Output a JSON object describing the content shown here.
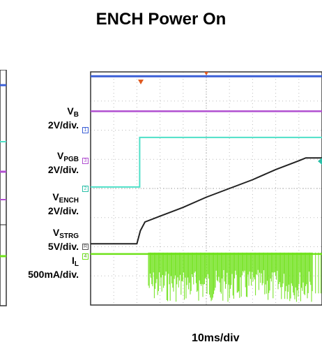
{
  "title": "ENCH Power On",
  "timebase": "10ms/div",
  "colors": {
    "vb": "#3b5fd6",
    "vpgb": "#b04fd0",
    "vench": "#4fe0c8",
    "vstrg": "#222222",
    "il": "#6fe21a",
    "trigger": "#e05a20"
  },
  "labels": [
    {
      "key": "vb",
      "name_main": "V",
      "name_sub": "B",
      "scale": "2V/div.",
      "marker": "1"
    },
    {
      "key": "vpgb",
      "name_main": "V",
      "name_sub": "PGB",
      "scale": "2V/div.",
      "marker": "3"
    },
    {
      "key": "vench",
      "name_main": "V",
      "name_sub": "ENCH",
      "scale": "2V/div.",
      "marker": "2"
    },
    {
      "key": "vstrg",
      "name_main": "V",
      "name_sub": "STRG",
      "scale": "5V/div.",
      "marker": "R"
    },
    {
      "key": "il",
      "name_main": "I",
      "name_sub": "L",
      "scale": "500mA/div.",
      "marker": "4"
    }
  ],
  "chart_data": {
    "type": "line",
    "title": "ENCH Power On",
    "x_unit": "divisions",
    "x_range": [
      0,
      10
    ],
    "y_unit": "divisions",
    "y_range": [
      0,
      8
    ],
    "grid": true,
    "series": [
      {
        "name": "VB",
        "x": [
          0,
          10
        ],
        "y": [
          7.85,
          7.85
        ]
      },
      {
        "name": "VPGB",
        "x": [
          0,
          10
        ],
        "y": [
          6.65,
          6.65
        ]
      },
      {
        "name": "VENCH",
        "x": [
          0,
          2.12,
          2.12,
          10
        ],
        "y": [
          4.05,
          4.05,
          5.75,
          5.75
        ]
      },
      {
        "name": "VSTRG",
        "x": [
          0,
          2.0,
          2.15,
          2.35,
          3.0,
          4.0,
          5.0,
          6.0,
          7.0,
          8.0,
          9.0,
          9.3,
          10
        ],
        "y": [
          2.1,
          2.1,
          2.55,
          2.85,
          3.05,
          3.35,
          3.7,
          4.0,
          4.3,
          4.65,
          4.95,
          5.05,
          5.05
        ]
      },
      {
        "name": "IL",
        "x": [
          0,
          2.5,
          9.6,
          10
        ],
        "y": [
          1.75,
          1.75,
          1.75,
          1.75
        ],
        "burst_range": [
          2.5,
          9.6
        ],
        "burst_low": 0.1,
        "burst_high": 1.8
      }
    ]
  }
}
